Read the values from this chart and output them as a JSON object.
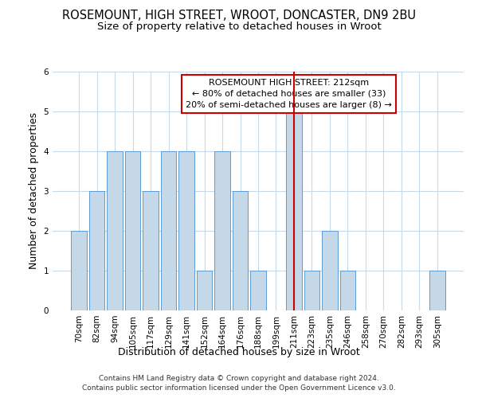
{
  "title": "ROSEMOUNT, HIGH STREET, WROOT, DONCASTER, DN9 2BU",
  "subtitle": "Size of property relative to detached houses in Wroot",
  "xlabel": "Distribution of detached houses by size in Wroot",
  "ylabel": "Number of detached properties",
  "footer_line1": "Contains HM Land Registry data © Crown copyright and database right 2024.",
  "footer_line2": "Contains public sector information licensed under the Open Government Licence v3.0.",
  "annotation_title": "ROSEMOUNT HIGH STREET: 212sqm",
  "annotation_line2": "← 80% of detached houses are smaller (33)",
  "annotation_line3": "20% of semi-detached houses are larger (8) →",
  "bar_labels": [
    "70sqm",
    "82sqm",
    "94sqm",
    "105sqm",
    "117sqm",
    "129sqm",
    "141sqm",
    "152sqm",
    "164sqm",
    "176sqm",
    "188sqm",
    "199sqm",
    "211sqm",
    "223sqm",
    "235sqm",
    "246sqm",
    "258sqm",
    "270sqm",
    "282sqm",
    "293sqm",
    "305sqm"
  ],
  "bar_values": [
    2,
    3,
    4,
    4,
    3,
    4,
    4,
    1,
    4,
    3,
    1,
    0,
    5,
    1,
    2,
    1,
    0,
    0,
    0,
    0,
    1
  ],
  "bar_color": "#c5d8e8",
  "bar_edge_color": "#5b9bd5",
  "highlight_index": 12,
  "highlight_line_color": "#cc0000",
  "ylim": [
    0,
    6
  ],
  "yticks": [
    0,
    1,
    2,
    3,
    4,
    5,
    6
  ],
  "background_color": "#ffffff",
  "grid_color": "#c8daea",
  "annotation_box_edge_color": "#cc0000",
  "title_fontsize": 10.5,
  "subtitle_fontsize": 9.5,
  "axis_label_fontsize": 9,
  "tick_fontsize": 7.5,
  "annotation_fontsize": 8,
  "footer_fontsize": 6.5
}
